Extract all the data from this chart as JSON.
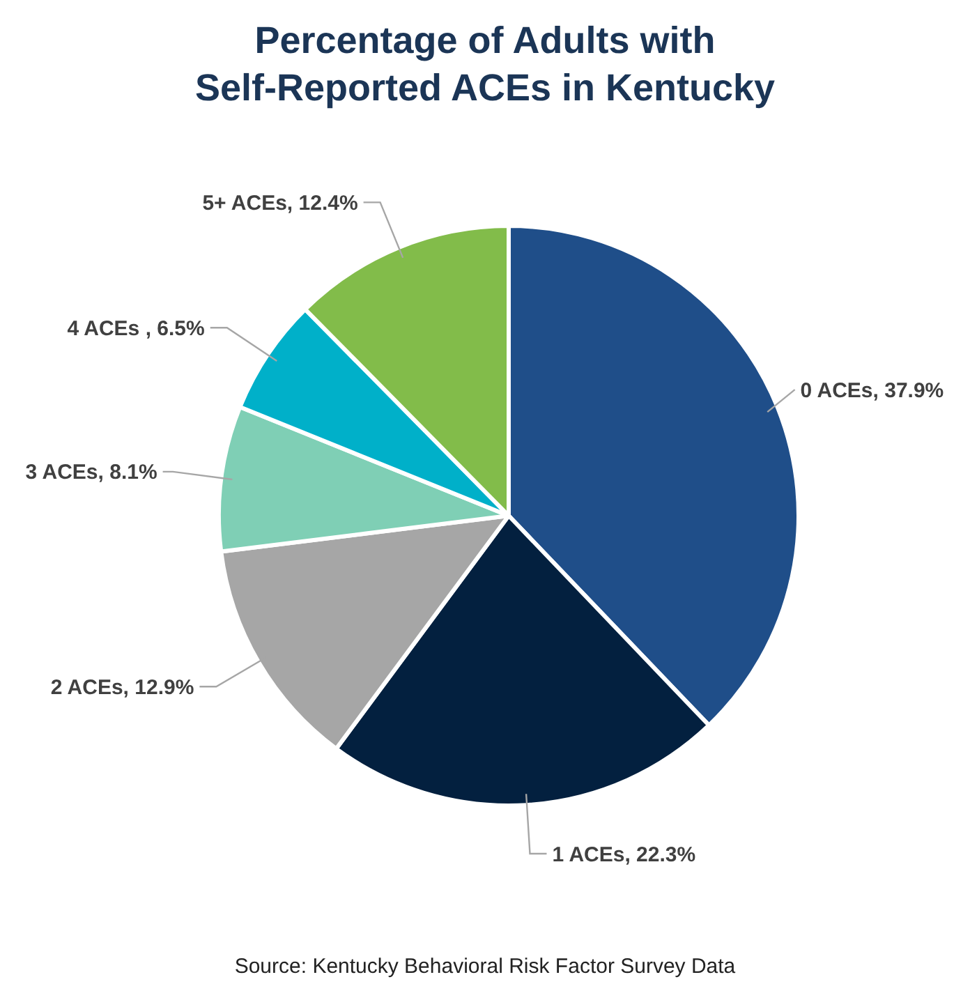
{
  "chart_data": {
    "type": "pie",
    "title": "Percentage of Adults with Self-Reported ACEs in Kentucky",
    "categories": [
      "0 ACEs",
      "1 ACEs",
      "2 ACEs",
      "3 ACEs",
      "4 ACEs ",
      "5+ ACEs"
    ],
    "values": [
      37.9,
      22.3,
      12.9,
      8.1,
      6.5,
      12.4
    ],
    "value_labels": [
      "37.9%",
      "22.3%",
      "12.9%",
      "8.1%",
      "6.5%",
      "12.4%"
    ],
    "colors": [
      "#1f4e89",
      "#03203f",
      "#a6a6a6",
      "#7fcfb5",
      "#00b0c9",
      "#82bc4a"
    ],
    "annotations": [
      "Source: Kentucky Behavioral Risk Factor Survey Data"
    ]
  }
}
